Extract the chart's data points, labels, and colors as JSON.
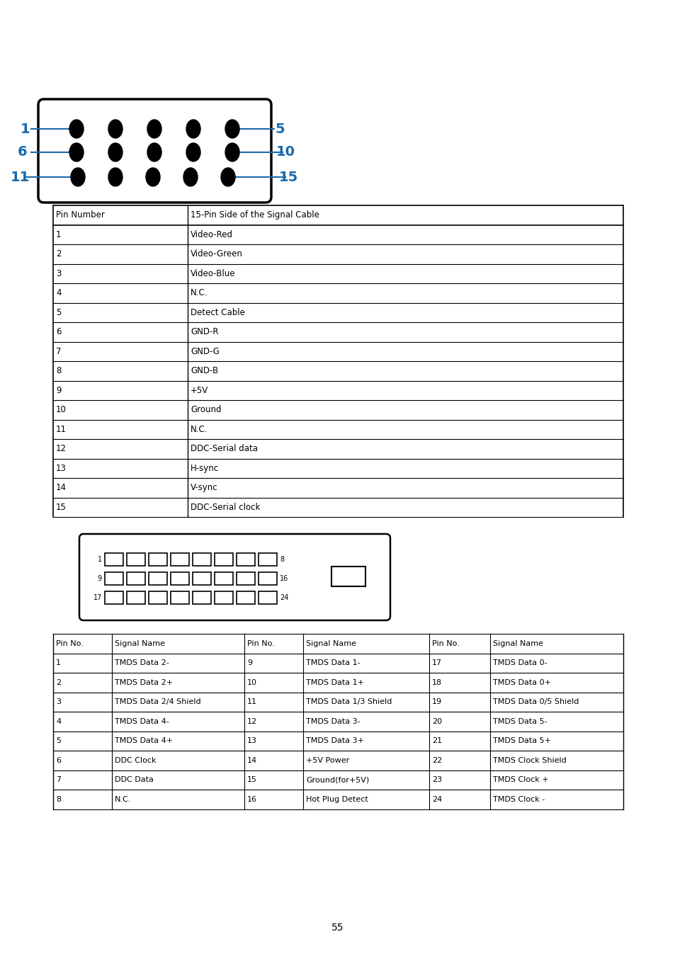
{
  "bg_color": "#ffffff",
  "blue_color": "#1a6aad",
  "black_color": "#000000",
  "page_number": "55",
  "vga_table": {
    "header": [
      "Pin Number",
      "15-Pin Side of the Signal Cable"
    ],
    "rows": [
      [
        "1",
        "Video-Red"
      ],
      [
        "2",
        "Video-Green"
      ],
      [
        "3",
        "Video-Blue"
      ],
      [
        "4",
        "N.C."
      ],
      [
        "5",
        "Detect Cable"
      ],
      [
        "6",
        "GND-R"
      ],
      [
        "7",
        "GND-G"
      ],
      [
        "8",
        "GND-B"
      ],
      [
        "9",
        "+5V"
      ],
      [
        "10",
        "Ground"
      ],
      [
        "11",
        "N.C."
      ],
      [
        "12",
        "DDC-Serial data"
      ],
      [
        "13",
        "H-sync"
      ],
      [
        "14",
        "V-sync"
      ],
      [
        "15",
        "DDC-Serial clock"
      ]
    ]
  },
  "dvi_table": {
    "header": [
      "Pin No.",
      "Signal Name",
      "Pin No.",
      "Signal Name",
      "Pin No.",
      "Signal Name"
    ],
    "rows": [
      [
        "1",
        "TMDS Data 2-",
        "9",
        "TMDS Data 1-",
        "17",
        "TMDS Data 0-"
      ],
      [
        "2",
        "TMDS Data 2+",
        "10",
        "TMDS Data 1+",
        "18",
        "TMDS Data 0+"
      ],
      [
        "3",
        "TMDS Data 2/4 Shield",
        "11",
        "TMDS Data 1/3 Shield",
        "19",
        "TMDS Data 0/5 Shield"
      ],
      [
        "4",
        "TMDS Data 4-",
        "12",
        "TMDS Data 3-",
        "20",
        "TMDS Data 5-"
      ],
      [
        "5",
        "TMDS Data 4+",
        "13",
        "TMDS Data 3+",
        "21",
        "TMDS Data 5+"
      ],
      [
        "6",
        "DDC Clock",
        "14",
        "+5V Power",
        "22",
        "TMDS Clock Shield"
      ],
      [
        "7",
        "DDC Data",
        "15",
        "Ground(for+5V)",
        "23",
        "TMDS Clock +"
      ],
      [
        "8",
        "N.C.",
        "16",
        "Hot Plug Detect",
        "24",
        "TMDS Clock -"
      ]
    ]
  }
}
